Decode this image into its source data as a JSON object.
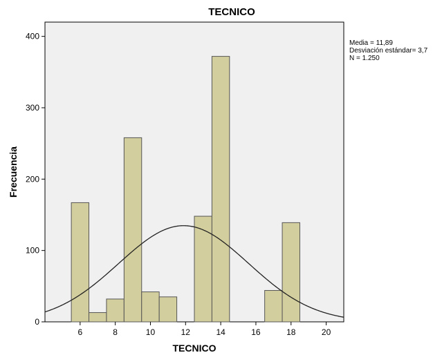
{
  "chart_data": {
    "type": "bar",
    "title": "TECNICO",
    "xlabel": "TECNICO",
    "ylabel": "Frecuencia",
    "xlim": [
      4,
      21
    ],
    "ylim": [
      0,
      420
    ],
    "x_ticks": [
      6,
      8,
      10,
      12,
      14,
      16,
      18,
      20
    ],
    "y_ticks": [
      0,
      100,
      200,
      300,
      400
    ],
    "bins": [
      {
        "x0": 5.5,
        "x1": 6.5,
        "value": 167
      },
      {
        "x0": 6.5,
        "x1": 7.5,
        "value": 13
      },
      {
        "x0": 7.5,
        "x1": 8.5,
        "value": 32
      },
      {
        "x0": 8.5,
        "x1": 9.5,
        "value": 258
      },
      {
        "x0": 9.5,
        "x1": 10.5,
        "value": 42
      },
      {
        "x0": 10.5,
        "x1": 11.5,
        "value": 35
      },
      {
        "x0": 12.5,
        "x1": 13.5,
        "value": 148
      },
      {
        "x0": 13.5,
        "x1": 14.5,
        "value": 372
      },
      {
        "x0": 16.5,
        "x1": 17.5,
        "value": 44
      },
      {
        "x0": 17.5,
        "x1": 18.5,
        "value": 139
      }
    ],
    "normal_curve": {
      "mean": 11.89,
      "sd": 3.7,
      "n": 1250,
      "bin_width": 1
    },
    "stats_lines": [
      "Media = 11,89",
      "Desviación estándar= 3,7",
      "N = 1.250"
    ],
    "legend_position": "top-right",
    "grid": false,
    "colors": {
      "bar_fill": "#d3ce9e",
      "bar_stroke": "#555555",
      "plot_bg": "#f0f0f0",
      "curve": "#222222"
    }
  }
}
